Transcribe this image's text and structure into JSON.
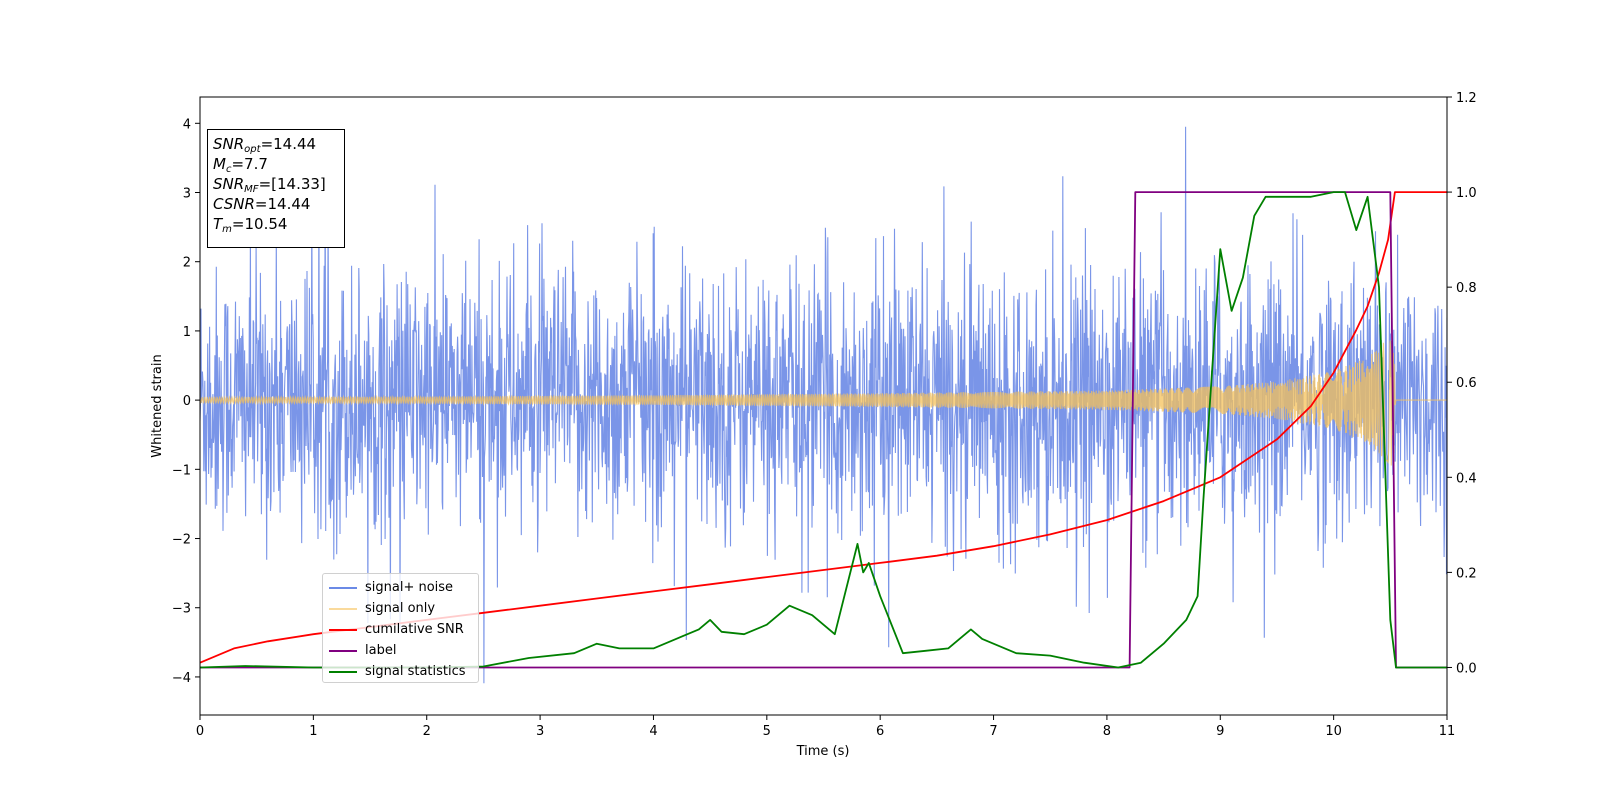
{
  "chart_data": {
    "type": "line",
    "xlabel": "Time (s)",
    "ylabel": "Whitened strain",
    "xlim": [
      0,
      11
    ],
    "ylim": [
      -4.55,
      4.38
    ],
    "y2lim": [
      -0.1,
      1.2
    ],
    "xticks": [
      "0",
      "1",
      "2",
      "3",
      "4",
      "5",
      "6",
      "7",
      "8",
      "9",
      "10",
      "11"
    ],
    "yticks": [
      "4",
      "3",
      "2",
      "1",
      "0",
      "−1",
      "−2",
      "−3",
      "−4"
    ],
    "y2ticks": [
      "1.2",
      "1.0",
      "0.8",
      "0.6",
      "0.4",
      "0.2",
      "0.0"
    ],
    "legend_position": "lower-left",
    "series": [
      {
        "name": "signal+ noise",
        "axis": "left",
        "color": "#6b8ae6",
        "description": "noisy strain, amplitude roughly ±2 with spikes up to about ±4, spanning 0–11 s"
      },
      {
        "name": "signal only",
        "axis": "left",
        "color": "#f6c15a",
        "envelope": {
          "x": [
            0,
            2,
            4,
            6,
            8,
            9,
            9.5,
            10,
            10.3,
            10.45,
            10.54,
            10.55,
            11
          ],
          "amplitude": [
            0.04,
            0.05,
            0.07,
            0.1,
            0.14,
            0.2,
            0.27,
            0.42,
            0.62,
            0.85,
            1.0,
            0,
            0
          ]
        }
      },
      {
        "name": "cumilative SNR",
        "axis": "right",
        "color": "#ff0000",
        "x": [
          0,
          0.3,
          0.6,
          1,
          1.5,
          2,
          2.5,
          3,
          3.5,
          4,
          4.5,
          5,
          5.5,
          6,
          6.5,
          7,
          7.5,
          8,
          8.5,
          9,
          9.5,
          9.8,
          10,
          10.2,
          10.3,
          10.4,
          10.48,
          10.54,
          11
        ],
        "y": [
          0.01,
          0.04,
          0.055,
          0.07,
          0.085,
          0.1,
          0.115,
          0.13,
          0.145,
          0.16,
          0.175,
          0.19,
          0.205,
          0.22,
          0.235,
          0.255,
          0.28,
          0.31,
          0.35,
          0.4,
          0.48,
          0.55,
          0.62,
          0.71,
          0.76,
          0.83,
          0.9,
          1.0,
          1.0
        ]
      },
      {
        "name": "label",
        "axis": "right",
        "color": "#800080",
        "x": [
          0,
          8.2,
          8.25,
          10.5,
          10.55,
          11
        ],
        "y": [
          0,
          0,
          1,
          1,
          0,
          0
        ]
      },
      {
        "name": "signal statistics",
        "axis": "right",
        "color": "#008000",
        "x": [
          0,
          0.4,
          1,
          2,
          2.5,
          2.9,
          3.3,
          3.5,
          3.7,
          4,
          4.2,
          4.4,
          4.5,
          4.6,
          4.8,
          5,
          5.2,
          5.4,
          5.6,
          5.8,
          5.85,
          5.9,
          6,
          6.2,
          6.4,
          6.6,
          6.8,
          6.9,
          7,
          7.2,
          7.5,
          7.8,
          8.1,
          8.3,
          8.5,
          8.7,
          8.8,
          8.85,
          9,
          9.1,
          9.2,
          9.3,
          9.4,
          9.6,
          9.8,
          10,
          10.1,
          10.2,
          10.3,
          10.4,
          10.5,
          10.55,
          11
        ],
        "y": [
          0,
          0.003,
          0,
          0,
          0.002,
          0.02,
          0.03,
          0.05,
          0.04,
          0.04,
          0.06,
          0.08,
          0.1,
          0.075,
          0.07,
          0.09,
          0.13,
          0.11,
          0.07,
          0.26,
          0.2,
          0.22,
          0.15,
          0.03,
          0.035,
          0.04,
          0.08,
          0.06,
          0.05,
          0.03,
          0.025,
          0.01,
          0.0,
          0.01,
          0.05,
          0.1,
          0.15,
          0.35,
          0.88,
          0.75,
          0.82,
          0.95,
          0.99,
          0.99,
          0.99,
          1.0,
          1.0,
          0.92,
          0.99,
          0.8,
          0.1,
          0.0,
          0.0
        ]
      }
    ],
    "annotation": [
      {
        "name": "SNR",
        "sub": "opt",
        "value": "=14.44"
      },
      {
        "name": "M",
        "sub": "c",
        "value": "=7.7"
      },
      {
        "name": "SNR",
        "sub": "MF",
        "value": "=[14.33]"
      },
      {
        "name": "CSNR",
        "sub": "",
        "value": "=14.44"
      },
      {
        "name": "T",
        "sub": "m",
        "value": "=10.54"
      }
    ]
  }
}
